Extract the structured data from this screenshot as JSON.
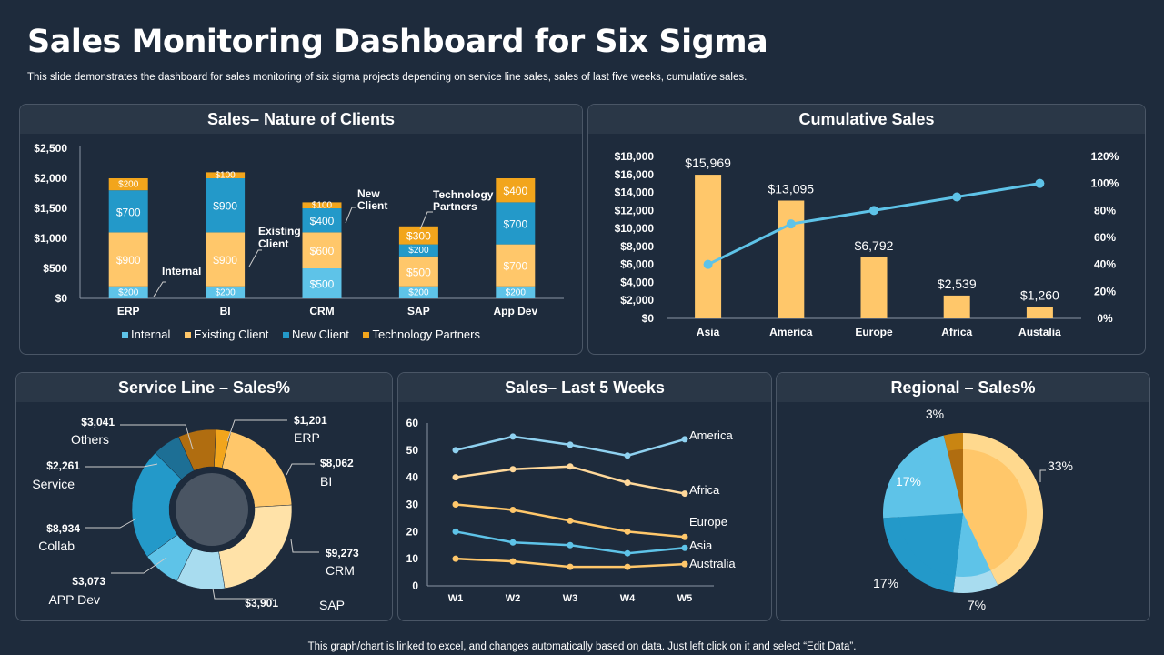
{
  "title": "Sales Monitoring Dashboard for Six Sigma",
  "subtitle": "This slide demonstrates the dashboard for sales monitoring of six sigma projects depending on service line sales, sales of last five  weeks, cumulative sales.",
  "footer": "This graph/chart is linked to excel,  and changes automatically based on data. Just left click on it and select “Edit Data”.",
  "colors": {
    "internal": "#5ec3e8",
    "existing": "#ffc76a",
    "new_client": "#2399c9",
    "tech": "#f2a51c",
    "bg": "#1e2b3c",
    "panel_head": "#2a3747",
    "line": "#5ec3e8"
  },
  "panels": {
    "clients": "Sales– Nature of Clients",
    "cumulative": "Cumulative Sales",
    "service": "Service Line – Sales%",
    "weeks": "Sales– Last 5 Weeks",
    "regional": "Regional – Sales%"
  },
  "chart_data": [
    {
      "id": "clients",
      "type": "bar",
      "stacked": true,
      "title": "Sales– Nature of Clients",
      "categories": [
        "ERP",
        "BI",
        "CRM",
        "SAP",
        "App Dev"
      ],
      "series": [
        {
          "name": "Internal",
          "values": [
            200,
            200,
            500,
            200,
            200
          ],
          "labels": [
            "$200",
            "$200",
            "$500",
            "$200",
            "$200"
          ]
        },
        {
          "name": "Existing Client",
          "values": [
            900,
            900,
            600,
            500,
            700
          ],
          "labels": [
            "$900",
            "$900",
            "$600",
            "$500",
            "$700"
          ]
        },
        {
          "name": "New Client",
          "values": [
            700,
            900,
            400,
            200,
            700
          ],
          "labels": [
            "$700",
            "$900",
            "$400",
            "$200",
            "$700"
          ]
        },
        {
          "name": "Technology Partners",
          "values": [
            200,
            100,
            100,
            300,
            400
          ],
          "labels": [
            "$200",
            "$100",
            "$100",
            "$300",
            "$400"
          ]
        }
      ],
      "ylim": [
        0,
        2500
      ],
      "yticks": [
        "$0",
        "$500",
        "$1,000",
        "$1,500",
        "$2,000",
        "$2,500"
      ],
      "annotations": [
        "Internal",
        "Existing Client",
        "New Client",
        "Technology Partners"
      ],
      "annotation_lines": [
        [
          "Existing",
          "Client"
        ],
        [
          "New",
          "Client"
        ],
        [
          "Technology",
          "Partners"
        ]
      ],
      "legend": [
        "Internal",
        "Existing Client",
        "New Client",
        "Technology Partners"
      ]
    },
    {
      "id": "cumulative",
      "type": "bar",
      "title": "Cumulative Sales",
      "categories": [
        "Asia",
        "America",
        "Europe",
        "Africa",
        "Austalia"
      ],
      "values": [
        15969,
        13095,
        6792,
        2539,
        1260
      ],
      "value_labels": [
        "$15,969",
        "$13,095",
        "$6,792",
        "$2,539",
        "$1,260"
      ],
      "ylim": [
        0,
        18000
      ],
      "yticks": [
        "$0",
        "$2,000",
        "$4,000",
        "$6,000",
        "$8,000",
        "$10,000",
        "$12,000",
        "$14,000",
        "$16,000",
        "$18,000"
      ],
      "secondary": {
        "type": "line",
        "values_pct": [
          40,
          70,
          80,
          90,
          100
        ],
        "ylim": [
          0,
          120
        ],
        "yticks": [
          "0%",
          "20%",
          "40%",
          "60%",
          "80%",
          "100%",
          "120%"
        ]
      }
    },
    {
      "id": "service",
      "type": "pie",
      "donut": true,
      "title": "Service Line – Sales%",
      "slices": [
        {
          "name": "ERP",
          "value": 1201,
          "label": "$1,201"
        },
        {
          "name": "BI",
          "value": 8062,
          "label": "$8,062"
        },
        {
          "name": "CRM",
          "value": 9273,
          "label": "$9,273"
        },
        {
          "name": "SAP",
          "value": 3901,
          "label": "$3,901"
        },
        {
          "name": "APP Dev",
          "value": 3073,
          "label": "$3,073"
        },
        {
          "name": "Collab",
          "value": 8934,
          "label": "$8,934"
        },
        {
          "name": "Service",
          "value": 2261,
          "label": "$2,261"
        },
        {
          "name": "Others",
          "value": 3041,
          "label": "$3,041"
        }
      ]
    },
    {
      "id": "weeks",
      "type": "line",
      "title": "Sales– Last 5 Weeks",
      "x": [
        "W1",
        "W2",
        "W3",
        "W4",
        "W5"
      ],
      "series": [
        {
          "name": "America",
          "values": [
            50,
            55,
            52,
            48,
            54
          ]
        },
        {
          "name": "Africa",
          "values": [
            40,
            43,
            44,
            38,
            34
          ]
        },
        {
          "name": "Europe",
          "values": [
            30,
            28,
            24,
            20,
            18
          ]
        },
        {
          "name": "Asia",
          "values": [
            20,
            16,
            15,
            12,
            14
          ]
        },
        {
          "name": "Australia",
          "values": [
            10,
            9,
            7,
            7,
            8
          ]
        }
      ],
      "ylim": [
        0,
        60
      ],
      "yticks": [
        "0",
        "10",
        "20",
        "30",
        "40",
        "50",
        "60"
      ]
    },
    {
      "id": "regional",
      "type": "pie",
      "title": "Regional – Sales%",
      "slices": [
        {
          "name": "33%",
          "value": 33,
          "label": "33%"
        },
        {
          "name": "7%",
          "value": 7,
          "label": "7%"
        },
        {
          "name": "17%a",
          "value": 17,
          "label": "17%"
        },
        {
          "name": "17%b",
          "value": 17,
          "label": "17%"
        },
        {
          "name": "3%",
          "value": 3,
          "label": "3%"
        }
      ]
    }
  ]
}
